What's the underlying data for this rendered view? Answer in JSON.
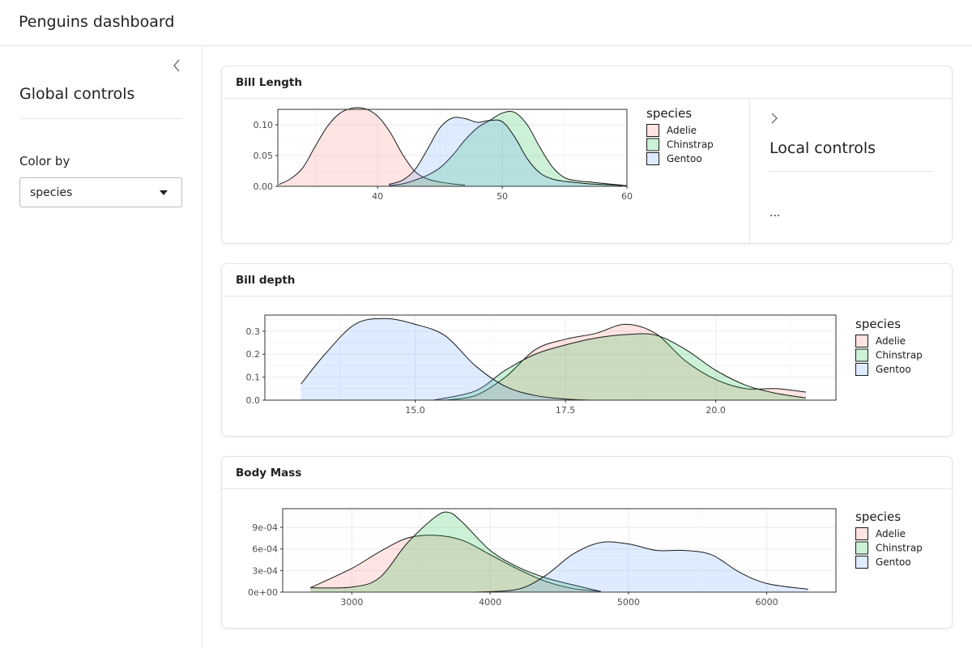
{
  "app": {
    "title": "Penguins dashboard"
  },
  "sidebar": {
    "title": "Global controls",
    "color_by": {
      "label": "Color by",
      "value": "species"
    }
  },
  "colors": {
    "Adelie": "#f8766d",
    "Chinstrap": "#00ba38",
    "Gentoo": "#619cff"
  },
  "local_controls": {
    "title": "Local controls",
    "content": "..."
  },
  "cards": [
    {
      "title": "Bill Length"
    },
    {
      "title": "Bill depth"
    },
    {
      "title": "Body Mass"
    }
  ],
  "chart_data": [
    {
      "type": "area",
      "title": "",
      "xlabel": "",
      "ylabel": "",
      "xlim": [
        32,
        60
      ],
      "ylim": [
        0,
        0.125
      ],
      "xticks": [
        40,
        50,
        60
      ],
      "yticks": [
        0.0,
        0.05,
        0.1
      ],
      "ytick_labels": [
        "0.00",
        "0.05",
        "0.10"
      ],
      "legend": {
        "title": "species",
        "position": "right"
      },
      "series": [
        {
          "name": "Adelie",
          "x": [
            32.1,
            33,
            34,
            35,
            36,
            37,
            38,
            39,
            40,
            41,
            42,
            43,
            44,
            45,
            46,
            47
          ],
          "y": [
            0.003,
            0.012,
            0.03,
            0.065,
            0.098,
            0.119,
            0.127,
            0.126,
            0.114,
            0.088,
            0.052,
            0.024,
            0.012,
            0.007,
            0.004,
            0.002
          ]
        },
        {
          "name": "Chinstrap",
          "x": [
            40.9,
            42,
            43,
            44,
            45,
            46,
            47,
            48,
            49,
            50,
            51,
            52,
            53,
            54,
            55,
            56,
            57,
            58,
            59,
            60
          ],
          "y": [
            0.001,
            0.004,
            0.01,
            0.018,
            0.03,
            0.05,
            0.075,
            0.095,
            0.107,
            0.119,
            0.12,
            0.1,
            0.064,
            0.032,
            0.014,
            0.009,
            0.007,
            0.005,
            0.003,
            0.001
          ]
        },
        {
          "name": "Gentoo",
          "x": [
            40.9,
            42,
            43,
            44,
            45,
            46,
            47,
            48,
            49,
            50,
            51,
            52,
            53,
            54,
            55,
            56,
            57,
            58,
            59,
            59.6
          ],
          "y": [
            0.003,
            0.01,
            0.027,
            0.06,
            0.095,
            0.111,
            0.11,
            0.104,
            0.107,
            0.105,
            0.08,
            0.045,
            0.022,
            0.012,
            0.008,
            0.006,
            0.004,
            0.003,
            0.002,
            0.001
          ]
        }
      ]
    },
    {
      "type": "area",
      "title": "",
      "xlabel": "",
      "ylabel": "",
      "xlim": [
        12.5,
        22
      ],
      "ylim": [
        0,
        0.37
      ],
      "xticks": [
        15.0,
        17.5,
        20.0
      ],
      "xtick_labels": [
        "15.0",
        "17.5",
        "20.0"
      ],
      "yticks": [
        0.0,
        0.1,
        0.2,
        0.3
      ],
      "ytick_labels": [
        "0.0",
        "0.1",
        "0.2",
        "0.3"
      ],
      "legend": {
        "title": "species",
        "position": "right"
      },
      "series": [
        {
          "name": "Adelie",
          "x": [
            15.5,
            16,
            16.5,
            17,
            17.5,
            18,
            18.5,
            19,
            19.5,
            20,
            20.5,
            21,
            21.5
          ],
          "y": [
            0.0,
            0.02,
            0.1,
            0.22,
            0.265,
            0.29,
            0.33,
            0.29,
            0.17,
            0.09,
            0.05,
            0.05,
            0.035
          ]
        },
        {
          "name": "Chinstrap",
          "x": [
            15.3,
            16,
            16.5,
            17,
            17.5,
            18,
            18.5,
            19,
            19.5,
            20,
            20.5,
            21,
            21.5
          ],
          "y": [
            0.0,
            0.04,
            0.13,
            0.2,
            0.24,
            0.27,
            0.285,
            0.283,
            0.22,
            0.13,
            0.065,
            0.03,
            0.01
          ]
        },
        {
          "name": "Gentoo",
          "x": [
            13.1,
            13.5,
            14,
            14.5,
            15,
            15.5,
            16,
            16.5,
            17,
            17.5,
            17.9
          ],
          "y": [
            0.07,
            0.2,
            0.33,
            0.355,
            0.33,
            0.28,
            0.15,
            0.06,
            0.02,
            0.005,
            0.0
          ]
        }
      ]
    },
    {
      "type": "area",
      "title": "",
      "xlabel": "",
      "ylabel": "",
      "xlim": [
        2500,
        6500
      ],
      "ylim": [
        0,
        0.00116
      ],
      "xticks": [
        3000,
        4000,
        5000,
        6000
      ],
      "yticks": [
        0,
        0.0003,
        0.0006,
        0.0009
      ],
      "ytick_labels": [
        "0e+00",
        "3e-04",
        "6e-04",
        "9e-04"
      ],
      "legend": {
        "title": "species",
        "position": "right"
      },
      "series": [
        {
          "name": "Adelie",
          "x": [
            2700,
            3000,
            3200,
            3400,
            3600,
            3800,
            4000,
            4200,
            4400,
            4600,
            4800
          ],
          "y": [
            6e-05,
            0.00033,
            0.00056,
            0.00075,
            0.00079,
            0.00072,
            0.00052,
            0.00032,
            0.00015,
            5e-05,
            1e-05
          ]
        },
        {
          "name": "Chinstrap",
          "x": [
            2700,
            3000,
            3200,
            3400,
            3600,
            3700,
            3800,
            4000,
            4200,
            4400,
            4600,
            4800
          ],
          "y": [
            6e-05,
            7e-05,
            0.0002,
            0.00068,
            0.00104,
            0.00111,
            0.00097,
            0.00058,
            0.00035,
            0.0002,
            0.0001,
            1e-05
          ]
        },
        {
          "name": "Gentoo",
          "x": [
            3900,
            4200,
            4400,
            4600,
            4800,
            5000,
            5200,
            5400,
            5600,
            5800,
            6000,
            6300
          ],
          "y": [
            0.0,
            4e-05,
            0.00023,
            0.00053,
            0.00069,
            0.00067,
            0.00058,
            0.00058,
            0.00052,
            0.00028,
            0.00012,
            4e-05
          ]
        }
      ]
    }
  ]
}
